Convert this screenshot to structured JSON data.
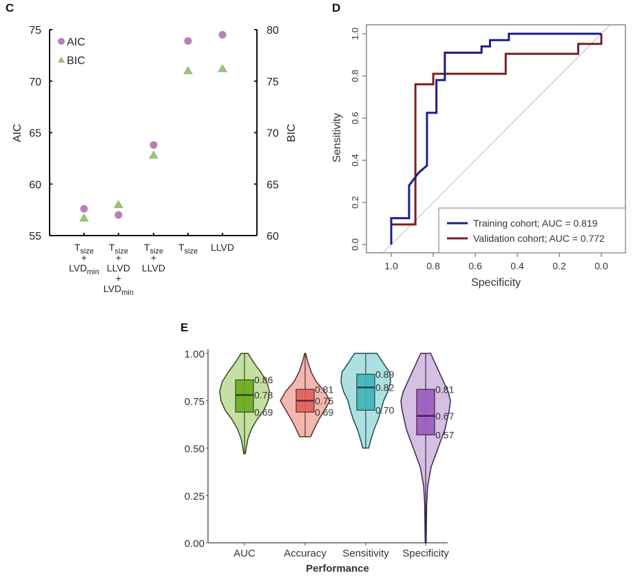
{
  "panels": {
    "c": {
      "label": "C"
    },
    "d": {
      "label": "D"
    },
    "e": {
      "label": "E"
    }
  },
  "chart_data": [
    {
      "panel": "C",
      "type": "scatter",
      "title": "",
      "xlabel": "",
      "ylabel": "AIC",
      "y2label": "BIC",
      "ylim": [
        55,
        75
      ],
      "y2lim": [
        60,
        80
      ],
      "yticks": [
        "55",
        "60",
        "65",
        "70",
        "75"
      ],
      "y2ticks": [
        "60",
        "65",
        "70",
        "75",
        "80"
      ],
      "categories": [
        {
          "lines": [
            {
              "main": "T",
              "sub": "size"
            },
            {
              "main": "+",
              "sub": ""
            },
            {
              "main": "LVD",
              "sub": "min"
            }
          ]
        },
        {
          "lines": [
            {
              "main": "T",
              "sub": "size"
            },
            {
              "main": "+",
              "sub": ""
            },
            {
              "main": "LLVD",
              "sub": ""
            },
            {
              "main": "+",
              "sub": ""
            },
            {
              "main": "LVD",
              "sub": "min"
            }
          ]
        },
        {
          "lines": [
            {
              "main": "T",
              "sub": "size"
            },
            {
              "main": "+",
              "sub": ""
            },
            {
              "main": "LLVD",
              "sub": ""
            }
          ]
        },
        {
          "lines": [
            {
              "main": "T",
              "sub": "size"
            }
          ]
        },
        {
          "lines": [
            {
              "main": "LLVD",
              "sub": ""
            }
          ]
        }
      ],
      "series": [
        {
          "name": "AIC",
          "axis": "left",
          "marker": "circle",
          "color": "#b77fb6",
          "values": [
            57.6,
            57.0,
            63.8,
            73.9,
            74.5
          ]
        },
        {
          "name": "BIC",
          "axis": "right",
          "marker": "triangle",
          "color": "#9dbf7a",
          "values": [
            61.7,
            63.0,
            67.8,
            76.0,
            76.2
          ]
        }
      ],
      "legend": {
        "position": "top-left"
      }
    },
    {
      "panel": "D",
      "type": "line",
      "title": "",
      "xlabel": "Specificity",
      "ylabel": "Sensitivity",
      "xlim": [
        1.0,
        0.0
      ],
      "ylim": [
        0.0,
        1.0
      ],
      "xticks": [
        "1.0",
        "0.8",
        "0.6",
        "0.4",
        "0.2",
        "0.0"
      ],
      "yticks": [
        "0.0",
        "0.2",
        "0.4",
        "0.6",
        "0.8",
        "1.0"
      ],
      "reference_line": "diagonal",
      "series": [
        {
          "name": "Training cohort; AUC = 0.819",
          "color": "#1c1c8c",
          "points": [
            [
              1.0,
              0.0
            ],
            [
              1.0,
              0.125
            ],
            [
              0.915,
              0.125
            ],
            [
              0.915,
              0.28
            ],
            [
              0.87,
              0.34
            ],
            [
              0.83,
              0.375
            ],
            [
              0.83,
              0.625
            ],
            [
              0.785,
              0.625
            ],
            [
              0.785,
              0.78
            ],
            [
              0.745,
              0.78
            ],
            [
              0.745,
              0.91
            ],
            [
              0.57,
              0.91
            ],
            [
              0.57,
              0.94
            ],
            [
              0.53,
              0.94
            ],
            [
              0.53,
              0.97
            ],
            [
              0.44,
              0.97
            ],
            [
              0.44,
              1.0
            ],
            [
              0.0,
              1.0
            ]
          ]
        },
        {
          "name": "Validation cohort; AUC = 0.772",
          "color": "#7a1f1f",
          "points": [
            [
              1.0,
              0.0
            ],
            [
              1.0,
              0.095
            ],
            [
              0.885,
              0.095
            ],
            [
              0.885,
              0.76
            ],
            [
              0.8,
              0.76
            ],
            [
              0.8,
              0.81
            ],
            [
              0.455,
              0.81
            ],
            [
              0.455,
              0.905
            ],
            [
              0.11,
              0.905
            ],
            [
              0.11,
              0.952
            ],
            [
              0.0,
              0.952
            ],
            [
              0.0,
              1.0
            ]
          ]
        }
      ],
      "legend": {
        "position": "bottom-right"
      }
    },
    {
      "panel": "E",
      "type": "violin",
      "title": "",
      "xlabel": "Performance",
      "ylabel": "",
      "ylim": [
        0.0,
        1.0
      ],
      "yticks": [
        "0.00",
        "0.25",
        "0.50",
        "0.75",
        "1.00"
      ],
      "categories": [
        "AUC",
        "Accuracy",
        "Sensitivity",
        "Specificity"
      ],
      "series": [
        {
          "name": "AUC",
          "fill": "#c6e0a4",
          "box": "#6aaa1e",
          "edge": "#2f4a1c",
          "q1": 0.69,
          "median": 0.78,
          "q3": 0.86,
          "min": 0.47,
          "max": 1.0,
          "labels": [
            "0.86",
            "0.78",
            "0.69"
          ],
          "profile": [
            [
              0.47,
              0.03
            ],
            [
              0.5,
              0.07
            ],
            [
              0.55,
              0.14
            ],
            [
              0.6,
              0.28
            ],
            [
              0.65,
              0.5
            ],
            [
              0.7,
              0.78
            ],
            [
              0.75,
              0.95
            ],
            [
              0.8,
              1.0
            ],
            [
              0.85,
              0.9
            ],
            [
              0.9,
              0.66
            ],
            [
              0.95,
              0.38
            ],
            [
              1.0,
              0.14
            ]
          ]
        },
        {
          "name": "Accuracy",
          "fill": "#f2b8b0",
          "box": "#e0605a",
          "edge": "#5a2a28",
          "q1": 0.69,
          "median": 0.75,
          "q3": 0.81,
          "min": 0.56,
          "max": 1.0,
          "labels": [
            "0.81",
            "0.75",
            "0.69"
          ],
          "profile": [
            [
              0.56,
              0.22
            ],
            [
              0.6,
              0.36
            ],
            [
              0.65,
              0.55
            ],
            [
              0.7,
              0.78
            ],
            [
              0.75,
              1.0
            ],
            [
              0.8,
              0.78
            ],
            [
              0.85,
              0.45
            ],
            [
              0.9,
              0.25
            ],
            [
              0.95,
              0.12
            ],
            [
              0.99,
              0.04
            ],
            [
              1.0,
              0.02
            ]
          ]
        },
        {
          "name": "Sensitivity",
          "fill": "#aee0e2",
          "box": "#3fb2b6",
          "edge": "#1f4a4c",
          "q1": 0.7,
          "median": 0.82,
          "q3": 0.89,
          "min": 0.5,
          "max": 1.0,
          "labels": [
            "0.89",
            "0.82",
            "0.70"
          ],
          "profile": [
            [
              0.5,
              0.12
            ],
            [
              0.55,
              0.22
            ],
            [
              0.6,
              0.34
            ],
            [
              0.65,
              0.5
            ],
            [
              0.7,
              0.62
            ],
            [
              0.75,
              0.72
            ],
            [
              0.8,
              0.9
            ],
            [
              0.85,
              1.0
            ],
            [
              0.9,
              0.96
            ],
            [
              0.95,
              0.7
            ],
            [
              1.0,
              0.45
            ]
          ]
        },
        {
          "name": "Specificity",
          "fill": "#d5bfe3",
          "box": "#9a5bbd",
          "edge": "#3a2448",
          "q1": 0.57,
          "median": 0.67,
          "q3": 0.81,
          "min": 0.0,
          "max": 1.0,
          "labels": [
            "0.81",
            "0.67",
            "0.57"
          ],
          "profile": [
            [
              0.0,
              0.02
            ],
            [
              0.1,
              0.03
            ],
            [
              0.2,
              0.04
            ],
            [
              0.3,
              0.08
            ],
            [
              0.4,
              0.22
            ],
            [
              0.5,
              0.5
            ],
            [
              0.6,
              0.78
            ],
            [
              0.7,
              0.95
            ],
            [
              0.75,
              1.0
            ],
            [
              0.8,
              0.9
            ],
            [
              0.9,
              0.55
            ],
            [
              1.0,
              0.2
            ]
          ]
        }
      ]
    }
  ]
}
